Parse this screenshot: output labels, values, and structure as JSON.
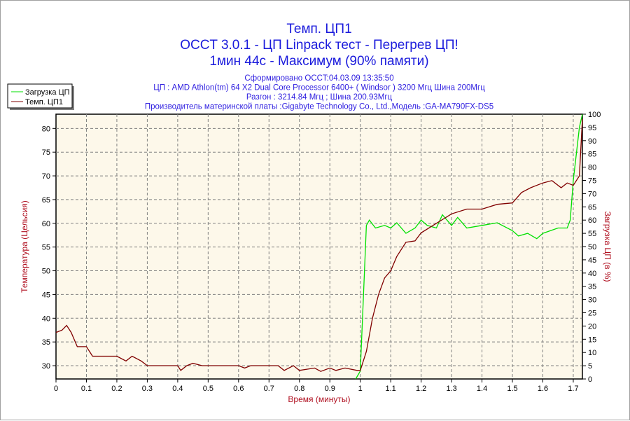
{
  "chart_data": {
    "type": "line",
    "title": [
      "Темп. ЦП1",
      "OCCT 3.0.1 - ЦП Linpack тест - Перегрев ЦП!",
      "1мин 44с - Максимум (90% памяти)"
    ],
    "subtitle": [
      "Сформировано OCCT:04.03.09 13:35:50",
      "ЦП : AMD Athlon(tm) 64 X2 Dual Core Processor 6400+ ( Windsor ) 3200 Мгц Шина 200Мгц",
      "Разгон : 3214.84 Мгц ; Шина 200.93Мгц",
      "Производитель материнской платы :Gigabyte Technology Co., Ltd.,Модель :GA-MA790FX-DS5"
    ],
    "xlabel": "Время (минуты)",
    "ylabel": "Температура (Цельсия)",
    "y2label": "Загрузка ЦП (в %)",
    "xlim": [
      0,
      1.73
    ],
    "ylim": [
      27.2,
      83
    ],
    "y2lim": [
      0,
      100
    ],
    "xticks": [
      "0",
      "0.1",
      "0.2",
      "0.3",
      "0.4",
      "0.5",
      "0.6",
      "0.7",
      "0.8",
      "0.9",
      "1",
      "1.1",
      "1.2",
      "1.3",
      "1.4",
      "1.5",
      "1.6",
      "1.7"
    ],
    "yticks": [
      "30",
      "35",
      "40",
      "45",
      "50",
      "55",
      "60",
      "65",
      "70",
      "75",
      "80"
    ],
    "y2ticks": [
      "0",
      "5",
      "10",
      "15",
      "20",
      "25",
      "30",
      "35",
      "40",
      "45",
      "50",
      "55",
      "60",
      "65",
      "70",
      "75",
      "80",
      "85",
      "90",
      "95",
      "100"
    ],
    "grid": true,
    "legend_position": "top-left",
    "colors": {
      "load": "#00e000",
      "temp": "#800000",
      "background": "#fdf8ea"
    },
    "series": [
      {
        "name": "Загрузка ЦП",
        "axis": "right",
        "x": [
          0.985,
          1.0,
          1.01,
          1.02,
          1.03,
          1.05,
          1.08,
          1.1,
          1.12,
          1.15,
          1.18,
          1.2,
          1.22,
          1.25,
          1.27,
          1.3,
          1.32,
          1.35,
          1.4,
          1.45,
          1.5,
          1.52,
          1.55,
          1.58,
          1.6,
          1.65,
          1.68,
          1.69,
          1.7,
          1.72,
          1.73
        ],
        "values": [
          0,
          3,
          30,
          58,
          60,
          57,
          58,
          57,
          59,
          55,
          57,
          60,
          58,
          57,
          62,
          58,
          61,
          57,
          58,
          59,
          56,
          54,
          55,
          53,
          55,
          57,
          57,
          60,
          75,
          95,
          100
        ]
      },
      {
        "name": "Темп. ЦП1",
        "axis": "left",
        "x": [
          0,
          0.02,
          0.035,
          0.05,
          0.07,
          0.1,
          0.12,
          0.2,
          0.23,
          0.25,
          0.28,
          0.3,
          0.4,
          0.41,
          0.43,
          0.45,
          0.48,
          0.6,
          0.62,
          0.64,
          0.73,
          0.75,
          0.78,
          0.8,
          0.85,
          0.87,
          0.9,
          0.92,
          0.95,
          0.99,
          1.0,
          1.02,
          1.04,
          1.06,
          1.08,
          1.1,
          1.12,
          1.15,
          1.18,
          1.2,
          1.25,
          1.3,
          1.35,
          1.4,
          1.45,
          1.5,
          1.53,
          1.56,
          1.6,
          1.63,
          1.66,
          1.68,
          1.7,
          1.72,
          1.73
        ],
        "values": [
          37,
          37.5,
          38.5,
          37,
          34,
          34,
          32,
          32,
          31,
          32,
          31,
          30,
          30,
          29,
          30,
          30.5,
          30,
          30,
          29.5,
          30,
          30,
          29,
          30,
          29,
          29.5,
          28.8,
          29.5,
          29,
          29.5,
          29,
          29,
          33,
          40,
          45,
          48.5,
          50,
          53,
          56,
          56.3,
          58,
          60,
          62,
          63,
          63,
          64,
          64.3,
          66.5,
          67.5,
          68.5,
          69,
          67.5,
          68.5,
          68,
          70,
          82
        ]
      }
    ]
  }
}
